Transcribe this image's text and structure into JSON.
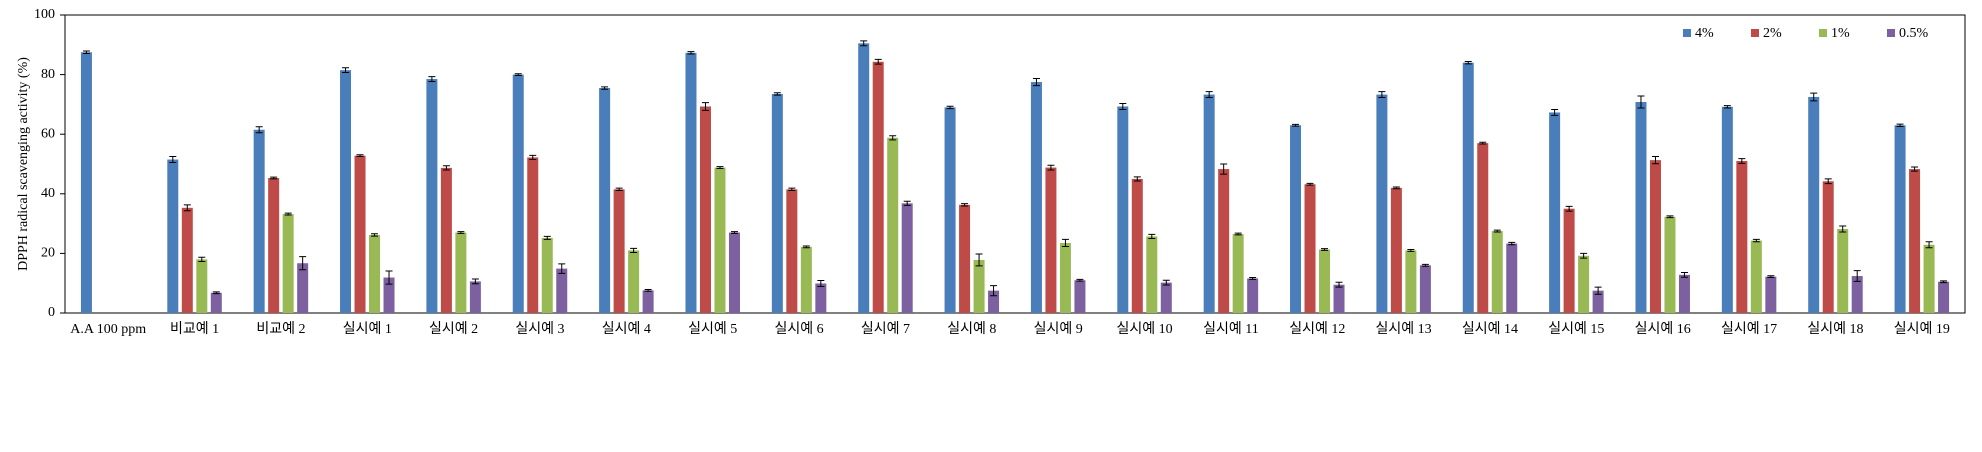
{
  "chart_data": {
    "type": "bar",
    "ylabel": "DPPH radical scavenging activity (%)",
    "categories": [
      "A.A 100 ppm",
      "비교예 1",
      "비교예 2",
      "실시예 1",
      "실시예 2",
      "실시예 3",
      "실시예 4",
      "실시예 5",
      "실시예 6",
      "실시예 7",
      "실시예 8",
      "실시예 9",
      "실시예 10",
      "실시예 11",
      "실시예 12",
      "실시예 13",
      "실시예 14",
      "실시예 15",
      "실시예 16",
      "실시예 17",
      "실시예 18",
      "실시예 19"
    ],
    "series": [
      {
        "name": "4%",
        "color": "#4a7ebb",
        "values": [
          87.5,
          51.5,
          61.5,
          81.5,
          78.5,
          80,
          75.5,
          87.3,
          73.5,
          90.5,
          69,
          77.5,
          69.3,
          73.3,
          63,
          73.3,
          84,
          67.3,
          70.8,
          69.2,
          72.5,
          63
        ],
        "errors": [
          0.4,
          1,
          1,
          0.8,
          0.8,
          0.3,
          0.4,
          0.4,
          0.4,
          0.8,
          0.4,
          1.2,
          1,
          1,
          0.3,
          1,
          0.4,
          1,
          2,
          0.4,
          1.3,
          0.4
        ]
      },
      {
        "name": "2%",
        "color": "#be4b48",
        "values": [
          null,
          35.3,
          45.3,
          52.8,
          48.7,
          52.2,
          41.5,
          69.3,
          41.5,
          84.3,
          36.3,
          48.8,
          45,
          48.3,
          43.2,
          42,
          57,
          35,
          51.3,
          51,
          44.2,
          48.3
        ],
        "errors": [
          null,
          1,
          0.3,
          0.3,
          0.7,
          0.7,
          0.4,
          1.3,
          0.4,
          0.8,
          0.4,
          0.8,
          0.7,
          1.7,
          0.3,
          0.3,
          0.3,
          0.8,
          1.2,
          0.8,
          0.8,
          0.7
        ]
      },
      {
        "name": "1%",
        "color": "#98b954",
        "values": [
          null,
          18,
          33.2,
          26.2,
          27,
          25.2,
          21,
          48.8,
          22.2,
          58.8,
          17.8,
          23.5,
          25.7,
          26.5,
          21.3,
          21,
          27.5,
          19.2,
          32.3,
          24.3,
          28.2,
          22.9
        ],
        "errors": [
          null,
          0.7,
          0.3,
          0.4,
          0.3,
          0.5,
          0.7,
          0.3,
          0.3,
          0.7,
          2,
          1.2,
          0.7,
          0.3,
          0.3,
          0.3,
          0.3,
          0.8,
          0.3,
          0.4,
          1,
          1
        ]
      },
      {
        "name": "0.5%",
        "color": "#7d60a0",
        "values": [
          null,
          6.8,
          16.7,
          11.9,
          10.6,
          14.9,
          7.6,
          27,
          9.9,
          36.8,
          7.5,
          11,
          10.2,
          11.6,
          9.5,
          16,
          23.3,
          7.5,
          12.8,
          12.2,
          12.4,
          10.5
        ],
        "errors": [
          null,
          0.3,
          2.2,
          2.2,
          0.8,
          1.6,
          0.3,
          0.3,
          1,
          0.7,
          1.7,
          0.3,
          0.8,
          0.3,
          0.8,
          0.3,
          0.4,
          1.2,
          0.8,
          0.3,
          1.8,
          0.3
        ]
      }
    ],
    "ylim": [
      0,
      100
    ],
    "yticks": [
      0,
      20,
      40,
      60,
      80,
      100
    ],
    "grid": false,
    "legend": "top-right"
  }
}
